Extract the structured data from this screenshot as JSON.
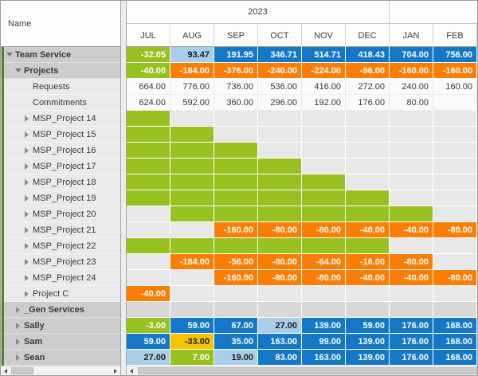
{
  "palette": {
    "green": "#96C11E",
    "orange": "#FA7D04",
    "blue": "#1478C8",
    "light_blue": "#A8CEE9",
    "yellow": "#F5C400",
    "strip_green": "#538127"
  },
  "header": {
    "name_column": "Name",
    "year_group": "2023",
    "months": [
      "JUL",
      "AUG",
      "SEP",
      "OCT",
      "NOV",
      "DEC",
      "JAN",
      "FEB"
    ]
  },
  "rows": [
    {
      "name": "Team Service",
      "level": 0,
      "toggle": "open",
      "group": true,
      "cells": [
        [
          "-32.05",
          "g"
        ],
        [
          "93.47",
          "lb"
        ],
        [
          "191.95",
          "b"
        ],
        [
          "346.71",
          "b"
        ],
        [
          "514.71",
          "b"
        ],
        [
          "418.43",
          "b"
        ],
        [
          "704.00",
          "b"
        ],
        [
          "756.00",
          "b"
        ]
      ]
    },
    {
      "name": "Projects",
      "level": 1,
      "toggle": "open",
      "group": true,
      "cells": [
        [
          "-40.00",
          "g"
        ],
        [
          "-184.00",
          "o"
        ],
        [
          "-376.00",
          "o"
        ],
        [
          "-240.00",
          "o"
        ],
        [
          "-224.00",
          "o"
        ],
        [
          "-96.00",
          "o"
        ],
        [
          "-160.00",
          "o"
        ],
        [
          "-160.00",
          "o"
        ]
      ]
    },
    {
      "name": "Requests",
      "level": 2,
      "toggle": "none",
      "group": false,
      "cells": [
        [
          "664.00",
          "w"
        ],
        [
          "776.00",
          "w"
        ],
        [
          "736.00",
          "w"
        ],
        [
          "536.00",
          "w"
        ],
        [
          "416.00",
          "w"
        ],
        [
          "272.00",
          "w"
        ],
        [
          "240.00",
          "w"
        ],
        [
          "160.00",
          "w"
        ]
      ]
    },
    {
      "name": "Commitments",
      "level": 2,
      "toggle": "none",
      "group": false,
      "cells": [
        [
          "624.00",
          "w"
        ],
        [
          "592.00",
          "w"
        ],
        [
          "360.00",
          "w"
        ],
        [
          "296.00",
          "w"
        ],
        [
          "192.00",
          "w"
        ],
        [
          "176.00",
          "w"
        ],
        [
          "80.00",
          "w"
        ],
        [
          "",
          "w"
        ]
      ]
    },
    {
      "name": "MSP_Project 14",
      "level": 2,
      "toggle": "closed",
      "group": false,
      "cells": [
        [
          "",
          "g"
        ],
        [
          "",
          "e"
        ],
        [
          "",
          "e"
        ],
        [
          "",
          "e"
        ],
        [
          "",
          "e"
        ],
        [
          "",
          "e"
        ],
        [
          "",
          "e"
        ],
        [
          "",
          "e"
        ]
      ]
    },
    {
      "name": "MSP_Project 15",
      "level": 2,
      "toggle": "closed",
      "group": false,
      "cells": [
        [
          "",
          "g"
        ],
        [
          "",
          "g"
        ],
        [
          "",
          "e"
        ],
        [
          "",
          "e"
        ],
        [
          "",
          "e"
        ],
        [
          "",
          "e"
        ],
        [
          "",
          "e"
        ],
        [
          "",
          "e"
        ]
      ]
    },
    {
      "name": "MSP_Project 16",
      "level": 2,
      "toggle": "closed",
      "group": false,
      "cells": [
        [
          "",
          "g"
        ],
        [
          "",
          "g"
        ],
        [
          "",
          "g"
        ],
        [
          "",
          "e"
        ],
        [
          "",
          "e"
        ],
        [
          "",
          "e"
        ],
        [
          "",
          "e"
        ],
        [
          "",
          "e"
        ]
      ]
    },
    {
      "name": "MSP_Project 17",
      "level": 2,
      "toggle": "closed",
      "group": false,
      "cells": [
        [
          "",
          "g"
        ],
        [
          "",
          "g"
        ],
        [
          "",
          "g"
        ],
        [
          "",
          "g"
        ],
        [
          "",
          "e"
        ],
        [
          "",
          "e"
        ],
        [
          "",
          "e"
        ],
        [
          "",
          "e"
        ]
      ]
    },
    {
      "name": "MSP_Project 18",
      "level": 2,
      "toggle": "closed",
      "group": false,
      "cells": [
        [
          "",
          "g"
        ],
        [
          "",
          "g"
        ],
        [
          "",
          "g"
        ],
        [
          "",
          "g"
        ],
        [
          "",
          "g"
        ],
        [
          "",
          "e"
        ],
        [
          "",
          "e"
        ],
        [
          "",
          "e"
        ]
      ]
    },
    {
      "name": "MSP_Project 19",
      "level": 2,
      "toggle": "closed",
      "group": false,
      "cells": [
        [
          "",
          "g"
        ],
        [
          "",
          "g"
        ],
        [
          "",
          "g"
        ],
        [
          "",
          "g"
        ],
        [
          "",
          "g"
        ],
        [
          "",
          "g"
        ],
        [
          "",
          "e"
        ],
        [
          "",
          "e"
        ]
      ]
    },
    {
      "name": "MSP_Project 20",
      "level": 2,
      "toggle": "closed",
      "group": false,
      "cells": [
        [
          "",
          "e"
        ],
        [
          "",
          "g"
        ],
        [
          "",
          "g"
        ],
        [
          "",
          "g"
        ],
        [
          "",
          "g"
        ],
        [
          "",
          "g"
        ],
        [
          "",
          "g"
        ],
        [
          "",
          "e"
        ]
      ]
    },
    {
      "name": "MSP_Project 21",
      "level": 2,
      "toggle": "closed",
      "group": false,
      "cells": [
        [
          "",
          "e"
        ],
        [
          "",
          "e"
        ],
        [
          "-160.00",
          "o"
        ],
        [
          "-80.00",
          "o"
        ],
        [
          "-80.00",
          "o"
        ],
        [
          "-40.00",
          "o"
        ],
        [
          "-40.00",
          "o"
        ],
        [
          "-80.00",
          "o"
        ]
      ]
    },
    {
      "name": "MSP_Project 22",
      "level": 2,
      "toggle": "closed",
      "group": false,
      "cells": [
        [
          "",
          "g"
        ],
        [
          "",
          "g"
        ],
        [
          "",
          "g"
        ],
        [
          "",
          "g"
        ],
        [
          "",
          "g"
        ],
        [
          "",
          "g"
        ],
        [
          "",
          "e"
        ],
        [
          "",
          "e"
        ]
      ]
    },
    {
      "name": "MSP_Project 23",
      "level": 2,
      "toggle": "closed",
      "group": false,
      "cells": [
        [
          "",
          "e"
        ],
        [
          "-184.00",
          "o"
        ],
        [
          "-56.00",
          "o"
        ],
        [
          "-80.00",
          "o"
        ],
        [
          "-64.00",
          "o"
        ],
        [
          "-16.00",
          "o"
        ],
        [
          "-80.00",
          "o"
        ],
        [
          "",
          "e"
        ]
      ]
    },
    {
      "name": "MSP_Project 24",
      "level": 2,
      "toggle": "closed",
      "group": false,
      "cells": [
        [
          "",
          "e"
        ],
        [
          "",
          "e"
        ],
        [
          "-160.00",
          "o"
        ],
        [
          "-80.00",
          "o"
        ],
        [
          "-80.00",
          "o"
        ],
        [
          "-40.00",
          "o"
        ],
        [
          "-40.00",
          "o"
        ],
        [
          "-80.00",
          "o"
        ]
      ]
    },
    {
      "name": "Project C",
      "level": 2,
      "toggle": "closed",
      "group": false,
      "cells": [
        [
          "-40.00",
          "o"
        ],
        [
          "",
          "e"
        ],
        [
          "",
          "e"
        ],
        [
          "",
          "e"
        ],
        [
          "",
          "e"
        ],
        [
          "",
          "e"
        ],
        [
          "",
          "e"
        ],
        [
          "",
          "e"
        ]
      ]
    },
    {
      "name": "_Gen Services",
      "level": 1,
      "toggle": "closed",
      "group": true,
      "cells": [
        [
          "",
          "gy"
        ],
        [
          "",
          "gy"
        ],
        [
          "",
          "gy"
        ],
        [
          "",
          "gy"
        ],
        [
          "",
          "gy"
        ],
        [
          "",
          "gy"
        ],
        [
          "",
          "gy"
        ],
        [
          "",
          "gy"
        ]
      ]
    },
    {
      "name": "Sally",
      "level": 1,
      "toggle": "closed",
      "group": true,
      "cells": [
        [
          "-3.00",
          "g"
        ],
        [
          "59.00",
          "b"
        ],
        [
          "67.00",
          "b"
        ],
        [
          "27.00",
          "lb"
        ],
        [
          "139.00",
          "b"
        ],
        [
          "59.00",
          "b"
        ],
        [
          "176.00",
          "b"
        ],
        [
          "168.00",
          "b"
        ]
      ]
    },
    {
      "name": "Sam",
      "level": 1,
      "toggle": "closed",
      "group": true,
      "cells": [
        [
          "59.00",
          "b"
        ],
        [
          "-33.00",
          "y"
        ],
        [
          "35.00",
          "b"
        ],
        [
          "163.00",
          "b"
        ],
        [
          "99.00",
          "b"
        ],
        [
          "139.00",
          "b"
        ],
        [
          "176.00",
          "b"
        ],
        [
          "168.00",
          "b"
        ]
      ]
    },
    {
      "name": "Sean",
      "level": 1,
      "toggle": "closed",
      "group": true,
      "cells": [
        [
          "27.00",
          "lb"
        ],
        [
          "7.00",
          "g"
        ],
        [
          "19.00",
          "lb"
        ],
        [
          "83.00",
          "b"
        ],
        [
          "163.00",
          "b"
        ],
        [
          "139.00",
          "b"
        ],
        [
          "176.00",
          "b"
        ],
        [
          "168.00",
          "b"
        ]
      ]
    }
  ]
}
